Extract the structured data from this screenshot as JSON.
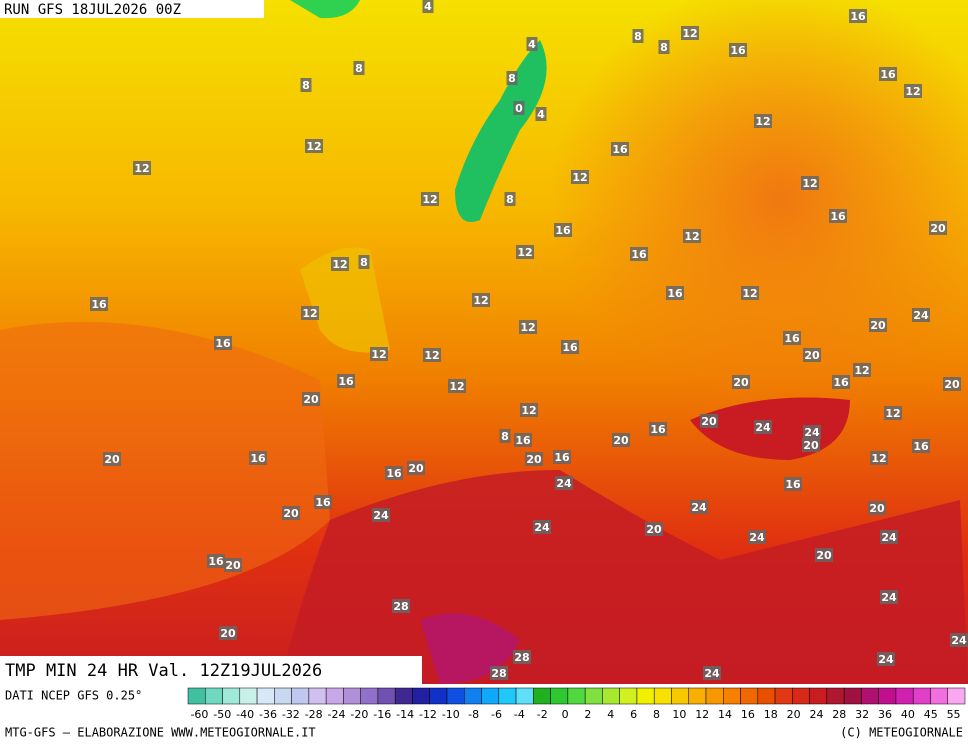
{
  "header": {
    "run": "RUN GFS 18JUL2026 00Z",
    "title": "TMP MIN 24 HR Val. 12Z19JUL2026"
  },
  "footer": {
    "source": "DATI NCEP GFS 0.25°",
    "credits": "MTG-GFS — ELABORAZIONE WWW.METEOGIORNALE.IT",
    "copyright": "(C) METEOGIORNALE"
  },
  "map_labels": [
    4,
    4,
    8,
    8,
    12,
    16,
    16,
    16,
    12,
    8,
    8,
    8,
    0,
    4,
    12,
    12,
    16,
    12,
    12,
    12,
    12,
    8,
    16,
    16,
    12,
    20,
    12,
    16,
    12,
    8,
    12,
    16,
    12,
    16,
    12,
    24,
    20,
    12,
    16,
    16,
    16,
    12,
    12,
    20,
    12,
    16,
    12,
    20,
    16,
    20,
    20,
    12,
    12,
    20,
    24,
    24,
    16,
    8,
    16,
    20,
    20,
    16,
    20,
    16,
    20,
    16,
    12,
    16,
    20,
    24,
    16,
    16,
    24,
    20,
    24,
    20,
    24,
    20,
    24,
    24,
    20,
    16,
    20,
    28,
    24,
    20,
    24,
    28,
    24,
    28,
    24
  ],
  "colorbar": {
    "labels": [
      -60,
      -50,
      -40,
      -36,
      -32,
      -28,
      -24,
      -20,
      -16,
      -14,
      -12,
      -10,
      -8,
      -6,
      -4,
      -2,
      0,
      2,
      4,
      6,
      8,
      10,
      12,
      14,
      16,
      18,
      20,
      24,
      28,
      32,
      36,
      40,
      45,
      55
    ],
    "colors": [
      "#40c0a0",
      "#70d8c0",
      "#a0e8d8",
      "#c8f0e8",
      "#d8e8f8",
      "#c8d8f0",
      "#c0c8f0",
      "#d0c0f0",
      "#c8a8e8",
      "#b090d8",
      "#9070c8",
      "#7050b0",
      "#402890",
      "#2020a0",
      "#1030c8",
      "#1050e0",
      "#1080f0",
      "#10a8f8",
      "#20c8f8",
      "#60e0f8",
      "#20b020",
      "#30c830",
      "#50d840",
      "#80e040",
      "#a8e830",
      "#d0f020",
      "#f0f000",
      "#f8e000",
      "#f8c800",
      "#f8b000",
      "#f89800",
      "#f88000",
      "#f06800",
      "#e85000",
      "#e03810",
      "#d82818",
      "#c81c22",
      "#b01830",
      "#a01040",
      "#b01070",
      "#c01090",
      "#d020b0",
      "#e040c8",
      "#f070e0",
      "#f8a8f0"
    ]
  }
}
